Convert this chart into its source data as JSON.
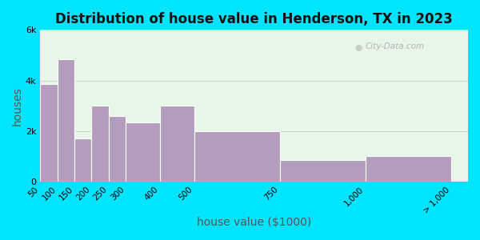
{
  "title": "Distribution of house value in Henderson, TX in 2023",
  "xlabel": "house value ($1000)",
  "ylabel": "houses",
  "bar_lefts": [
    50,
    100,
    150,
    200,
    250,
    300,
    400,
    500,
    750,
    1000
  ],
  "bar_widths": [
    50,
    50,
    50,
    50,
    50,
    100,
    100,
    250,
    250,
    250
  ],
  "values": [
    3850,
    4850,
    1700,
    3000,
    2600,
    2350,
    3000,
    2000,
    850,
    1000
  ],
  "last_bar_label": "> 1,000",
  "bar_color": "#b39dbd",
  "bar_edge_color": "#ffffff",
  "ylim": [
    0,
    6000
  ],
  "yticks": [
    0,
    2000,
    4000,
    6000
  ],
  "ytick_labels": [
    "0",
    "2k",
    "4k",
    "6k"
  ],
  "xtick_positions": [
    50,
    100,
    150,
    200,
    250,
    300,
    400,
    500,
    750,
    1000,
    1250
  ],
  "xtick_labels": [
    "50",
    "100",
    "150",
    "200",
    "250",
    "300",
    "400",
    "500",
    "750",
    "1,000",
    "> 1,000"
  ],
  "xlim": [
    50,
    1300
  ],
  "bg_outer": "#00e5ff",
  "bg_plot": "#e8f5e9",
  "title_fontsize": 12,
  "axis_label_fontsize": 10,
  "watermark_text": "City-Data.com",
  "watermark_color": "#aaaaaa"
}
